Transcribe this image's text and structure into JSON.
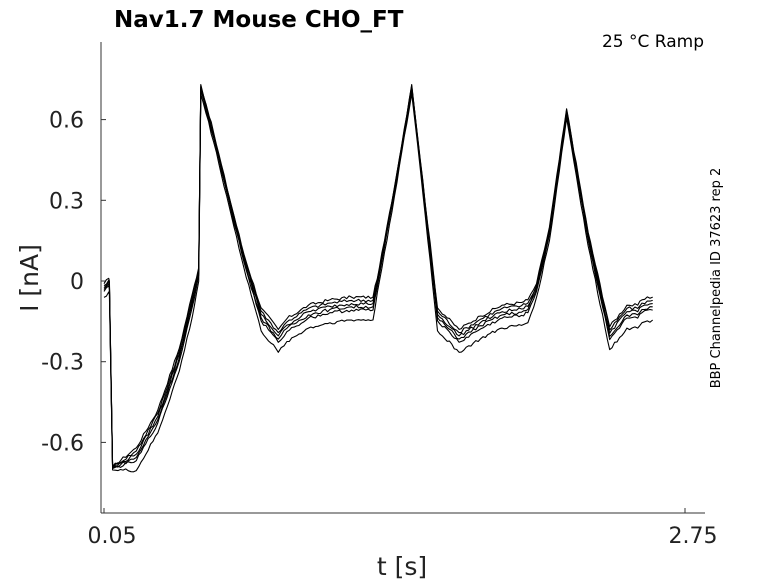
{
  "chart_data": {
    "type": "line",
    "title": "Nav1.7  Mouse  CHO_FT",
    "condition": "25 °C  Ramp",
    "xlabel": "t [s]",
    "ylabel": "I [nA]",
    "xlim": [
      0.05,
      2.75
    ],
    "ylim": [
      -0.85,
      0.88
    ],
    "xticks": [
      0.05,
      2.75
    ],
    "xtick_labels": [
      "0.05",
      "2.75"
    ],
    "yticks": [
      0.6,
      0.3,
      0,
      -0.3,
      -0.6
    ],
    "ytick_labels": [
      "0.6",
      "0.3",
      "0",
      "-0.3",
      "-0.6"
    ],
    "grid": false,
    "side_label": "BBP Channelpedia ID 37623 rep 2",
    "trace_count": 6,
    "trace_template": {
      "x": [
        0.05,
        0.072,
        0.075,
        0.09,
        0.2,
        0.3,
        0.4,
        0.46,
        0.49,
        0.5,
        0.56,
        0.62,
        0.7,
        0.78,
        0.86,
        0.9,
        1.0,
        1.1,
        1.2,
        1.3,
        1.33,
        1.4,
        1.48,
        1.52,
        1.6,
        1.7,
        1.8,
        1.9,
        1.99,
        2.02,
        2.06,
        2.12,
        2.2,
        2.3,
        2.4,
        2.48,
        2.53,
        2.55,
        2.6
      ],
      "y": [
        -0.01,
        0.01,
        0.0,
        -0.69,
        -0.62,
        -0.48,
        -0.25,
        -0.05,
        0.05,
        0.73,
        0.55,
        0.35,
        0.1,
        -0.1,
        -0.18,
        -0.14,
        -0.09,
        -0.07,
        -0.06,
        -0.06,
        0.05,
        0.35,
        0.73,
        0.45,
        -0.1,
        -0.18,
        -0.13,
        -0.09,
        -0.08,
        -0.07,
        -0.01,
        0.2,
        0.64,
        0.18,
        -0.17,
        -0.09,
        -0.09,
        -0.07,
        -0.06
      ]
    },
    "trace_offsets": [
      0.0,
      -0.012,
      -0.024,
      -0.036,
      -0.048,
      -0.085
    ]
  }
}
